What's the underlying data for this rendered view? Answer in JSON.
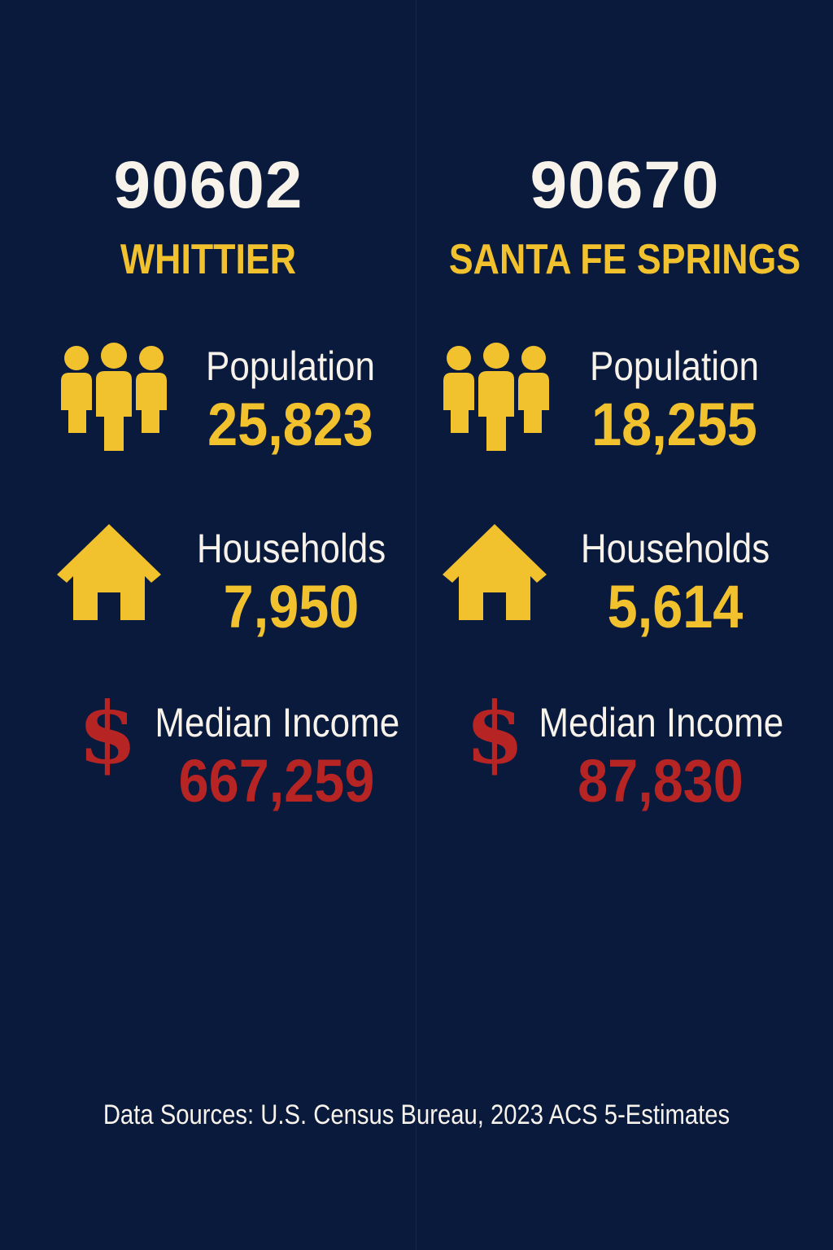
{
  "colors": {
    "background": "#0a1a3c",
    "heading": "#f7f2ea",
    "accent_yellow": "#f2c12e",
    "accent_red": "#b62424"
  },
  "columns": [
    {
      "zip": "90602",
      "city": "WHITTIER",
      "population_label": "Population",
      "population_value": "25,823",
      "households_label": "Households",
      "households_value": "7,950",
      "income_label": "Median Income",
      "income_value": "667,259",
      "income_icon": "$"
    },
    {
      "zip": "90670",
      "city": "SANTA FE SPRINGS",
      "population_label": "Population",
      "population_value": "18,255",
      "households_label": "Households",
      "households_value": "5,614",
      "income_label": "Median Income",
      "income_value": "87,830",
      "income_icon": "$"
    }
  ],
  "icons": {
    "population": "people-icon",
    "households": "house-icon",
    "income": "dollar-icon"
  },
  "footer": "Data Sources: U.S. Census Bureau, 2023 ACS 5-Estimates"
}
